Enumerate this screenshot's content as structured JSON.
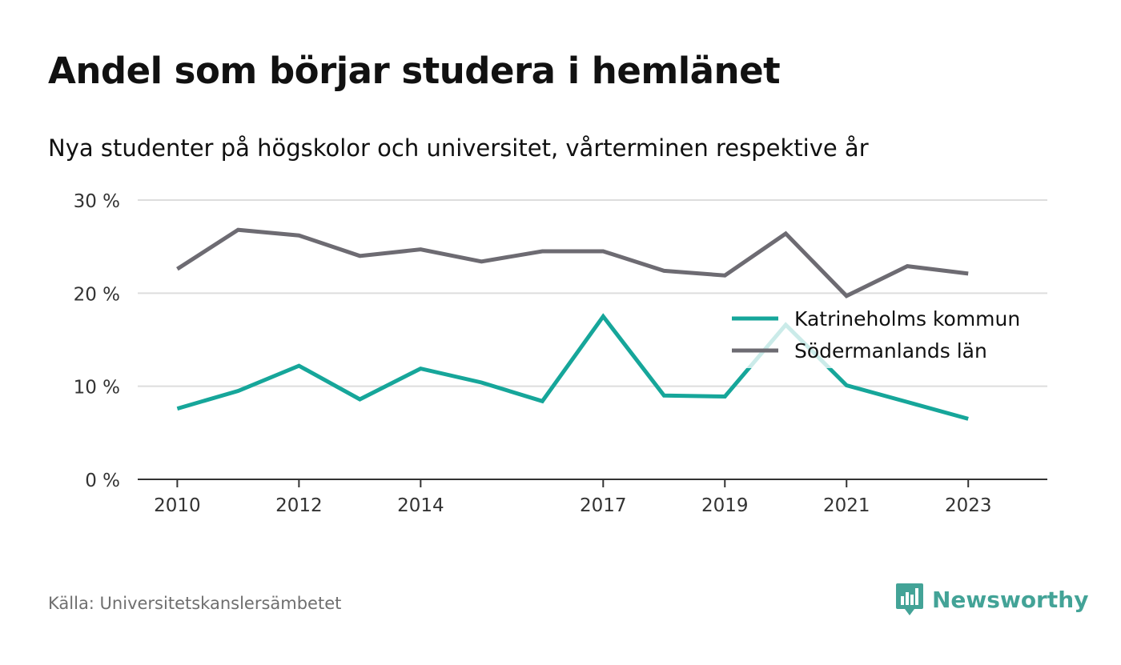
{
  "title": "Andel som börjar studera i hemlänet",
  "subtitle": "Nya studenter på högskolor och universitet, vårterminen respektive år",
  "source": "Källa: Universitetskanslersämbetet",
  "brand": {
    "name": "Newsworthy",
    "icon": "newsworthy-logo-icon",
    "color": "#43a397"
  },
  "colors": {
    "grid": "#dddddd",
    "axis": "#333333",
    "tick_text": "#333333"
  },
  "chart_data": {
    "type": "line",
    "x": [
      2010,
      2011,
      2012,
      2013,
      2014,
      2015,
      2016,
      2017,
      2018,
      2019,
      2020,
      2021,
      2022,
      2023
    ],
    "x_tick_labels": [
      "2010",
      "2012",
      "2014",
      "2017",
      "2019",
      "2021",
      "2023"
    ],
    "y_tick_labels": [
      "0 %",
      "10 %",
      "20 %",
      "30 %"
    ],
    "y_ticks": [
      0,
      10,
      20,
      30
    ],
    "ylim": [
      0,
      30
    ],
    "xlim": [
      2009.35,
      2024.3
    ],
    "grid": true,
    "legend_position": "right",
    "series": [
      {
        "name": "Katrineholms kommun",
        "color": "#16a69a",
        "values": [
          7.6,
          9.5,
          12.2,
          8.6,
          11.9,
          10.4,
          8.4,
          17.5,
          9.0,
          8.9,
          16.6,
          10.1,
          8.3,
          6.5
        ]
      },
      {
        "name": "Södermanlands län",
        "color": "#6d6b72",
        "values": [
          22.6,
          26.8,
          26.2,
          24.0,
          24.7,
          23.4,
          24.5,
          24.5,
          22.4,
          21.9,
          26.4,
          19.7,
          22.9,
          22.1
        ]
      }
    ]
  }
}
